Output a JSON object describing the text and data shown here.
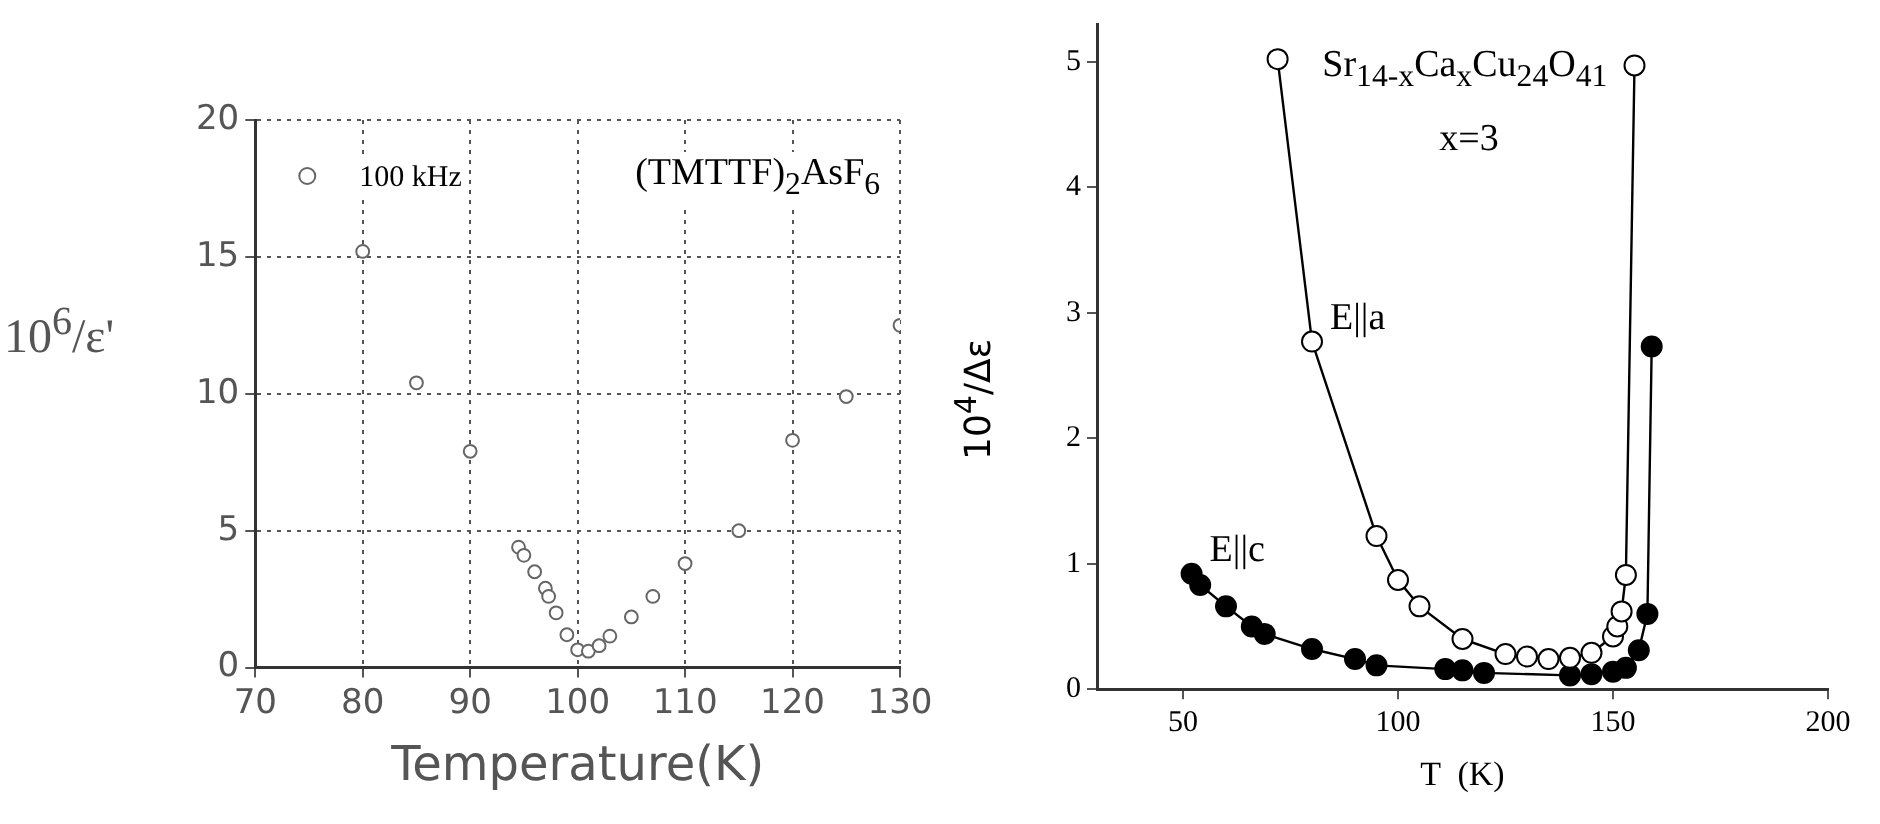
{
  "chart_data": [
    {
      "type": "scatter",
      "xlabel": "Temperature(K)",
      "ylabel": "10$^{6}$/ε'",
      "annotations": [
        "(TMTTF)$_{2}$AsF$_{6}$"
      ],
      "xlim": [
        70,
        130
      ],
      "ylim": [
        0,
        20
      ],
      "xticks": [
        70,
        80,
        90,
        100,
        110,
        120,
        130
      ],
      "yticks": [
        0,
        5,
        10,
        15,
        20
      ],
      "grid": true,
      "legend": "top left",
      "marker": "circle",
      "series": [
        {
          "name": "100 kHz",
          "color": "#666666",
          "x": [
            80,
            85,
            90,
            94.5,
            95,
            96,
            97,
            97.3,
            98,
            99,
            100,
            101,
            102,
            103,
            105,
            107,
            110,
            115,
            120,
            125,
            130
          ],
          "values": [
            15.2,
            10.4,
            7.9,
            4.4,
            4.1,
            3.5,
            2.9,
            2.6,
            2.0,
            1.2,
            0.65,
            0.6,
            0.8,
            1.15,
            1.85,
            2.6,
            3.8,
            5.0,
            8.3,
            9.9,
            12.5
          ]
        }
      ]
    },
    {
      "type": "line",
      "xlabel": "T  (K)",
      "ylabel": "10$^{4}$/Δε",
      "annotations": [
        "Sr$_{14-x}$Ca$_{x}$Cu$_{24}$O$_{41}$",
        "x=3"
      ],
      "xlim": [
        30,
        200
      ],
      "ylim": [
        0,
        5.3
      ],
      "xticks": [
        50,
        100,
        150,
        200
      ],
      "yticks": [
        0,
        1,
        2,
        3,
        4,
        5
      ],
      "marker": "circle",
      "line_style": "solid",
      "series": [
        {
          "name": "E||a",
          "color": "#000000",
          "x": [
            72,
            80,
            95,
            100,
            105,
            115,
            125,
            130,
            135,
            140,
            145,
            150,
            151,
            152,
            153,
            155
          ],
          "values": [
            5.02,
            2.77,
            1.22,
            0.87,
            0.66,
            0.4,
            0.28,
            0.26,
            0.24,
            0.25,
            0.29,
            0.42,
            0.5,
            0.62,
            0.91,
            4.97
          ]
        },
        {
          "name": "E||c",
          "color": "#000000",
          "x": [
            52,
            54,
            60,
            66,
            69,
            80,
            90,
            95,
            111,
            115,
            120,
            140,
            145,
            150,
            153,
            156,
            158,
            159
          ],
          "values": [
            0.92,
            0.83,
            0.66,
            0.5,
            0.44,
            0.32,
            0.24,
            0.19,
            0.16,
            0.15,
            0.13,
            0.11,
            0.12,
            0.14,
            0.17,
            0.31,
            0.6,
            2.73
          ]
        }
      ]
    }
  ]
}
